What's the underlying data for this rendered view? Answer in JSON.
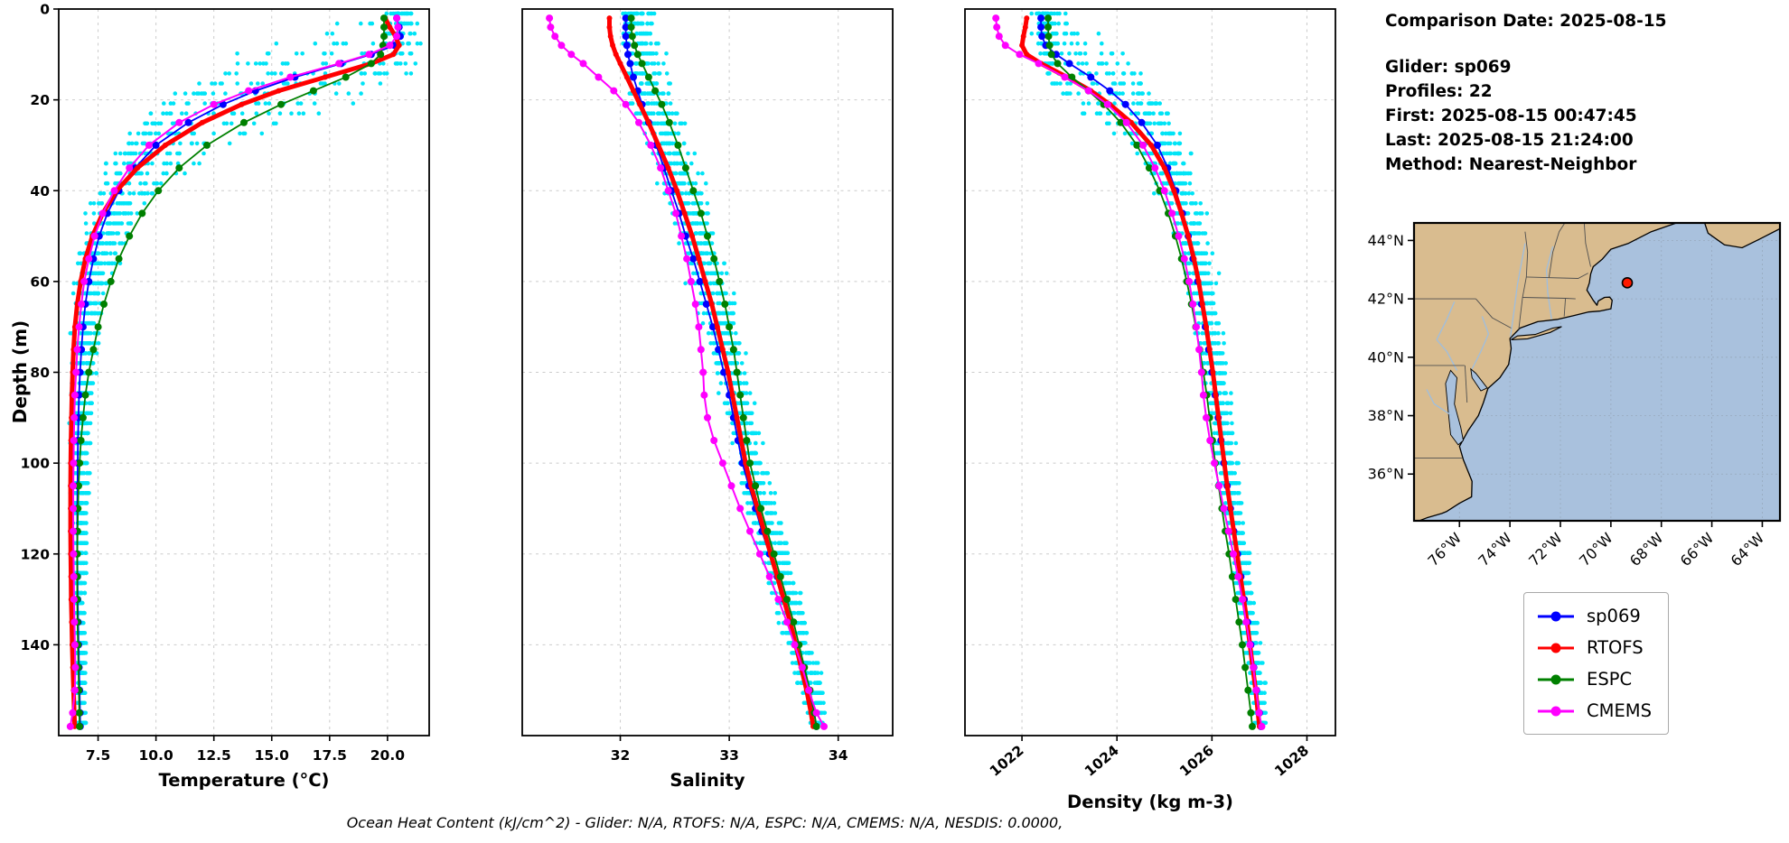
{
  "info": {
    "comparison_date": "Comparison Date: 2025-08-15",
    "glider": "Glider: sp069",
    "profiles": "Profiles: 22",
    "first": "First: 2025-08-15 00:47:45",
    "last": "Last: 2025-08-15 21:24:00",
    "method": "Method: Nearest-Neighbor"
  },
  "caption": {
    "text": "Ocean Heat Content (kJ/cm^2) - Glider: N/A,  RTOFS: N/A,  ESPC: N/A,  CMEMS: N/A,  NESDIS: 0.0000,"
  },
  "chart_data": {
    "type": "line",
    "profiles": {
      "depth_label": "Depth (m)",
      "depth_ticks": [
        0,
        20,
        40,
        60,
        80,
        100,
        120,
        140
      ],
      "depth_lim": [
        0,
        160
      ],
      "depths": [
        2,
        4,
        6,
        8,
        10,
        12,
        15,
        18,
        21,
        25,
        30,
        35,
        40,
        45,
        50,
        55,
        60,
        65,
        70,
        75,
        80,
        85,
        90,
        95,
        100,
        105,
        110,
        115,
        120,
        125,
        130,
        135,
        140,
        145,
        150,
        155,
        158
      ],
      "panels": [
        {
          "key": "temperature",
          "xlabel": "Temperature (°C)",
          "xlim": [
            5.8,
            21.8
          ],
          "xticks": [
            7.5,
            10.0,
            12.5,
            15.0,
            17.5,
            20.0
          ],
          "tick_rotation": 0,
          "tick_format": "fixed1"
        },
        {
          "key": "salinity",
          "xlabel": "Salinity",
          "xlim": [
            31.1,
            34.5
          ],
          "xticks": [
            32,
            33,
            34
          ],
          "tick_rotation": 0,
          "tick_format": "int"
        },
        {
          "key": "density",
          "xlabel": "Density (kg m-3)",
          "xlim": [
            1020.8,
            1028.6
          ],
          "xticks": [
            1022,
            1024,
            1026,
            1028
          ],
          "tick_rotation": -40,
          "tick_format": "int"
        }
      ],
      "series": [
        {
          "name": "sp069",
          "color": "#0000ff",
          "line_width": 1.8,
          "marker_r": 4,
          "temperature": [
            20.4,
            20.5,
            20.55,
            20.3,
            19.3,
            18.0,
            16.0,
            14.3,
            12.9,
            11.4,
            10.0,
            9.1,
            8.4,
            7.9,
            7.55,
            7.3,
            7.1,
            6.95,
            6.85,
            6.78,
            6.72,
            6.68,
            6.65,
            6.63,
            6.62,
            6.61,
            6.6,
            6.6,
            6.6,
            6.61,
            6.62,
            6.64,
            6.66,
            6.68,
            6.7,
            6.72,
            6.73
          ],
          "salinity": [
            32.05,
            32.05,
            32.05,
            32.06,
            32.07,
            32.09,
            32.12,
            32.16,
            32.2,
            32.26,
            32.33,
            32.4,
            32.47,
            32.54,
            32.6,
            32.67,
            32.73,
            32.79,
            32.85,
            32.9,
            32.95,
            33.0,
            33.04,
            33.08,
            33.12,
            33.18,
            33.24,
            33.3,
            33.37,
            33.44,
            33.5,
            33.56,
            33.62,
            33.68,
            33.73,
            33.78,
            33.8
          ],
          "density": [
            1022.4,
            1022.4,
            1022.42,
            1022.5,
            1022.72,
            1023.0,
            1023.45,
            1023.85,
            1024.18,
            1024.52,
            1024.85,
            1025.07,
            1025.24,
            1025.38,
            1025.5,
            1025.6,
            1025.7,
            1025.78,
            1025.86,
            1025.93,
            1026.0,
            1026.07,
            1026.13,
            1026.19,
            1026.25,
            1026.32,
            1026.39,
            1026.46,
            1026.54,
            1026.61,
            1026.68,
            1026.75,
            1026.82,
            1026.88,
            1026.94,
            1027.0,
            1027.03
          ]
        },
        {
          "name": "RTOFS",
          "color": "#ff0000",
          "line_width": 5,
          "marker_r": 3,
          "temperature": [
            19.9,
            20.1,
            20.35,
            20.5,
            20.25,
            19.3,
            17.3,
            15.3,
            13.7,
            12.0,
            10.4,
            9.2,
            8.3,
            7.7,
            7.25,
            6.95,
            6.75,
            6.6,
            6.5,
            6.44,
            6.4,
            6.37,
            6.35,
            6.33,
            6.32,
            6.31,
            6.31,
            6.31,
            6.32,
            6.33,
            6.34,
            6.36,
            6.38,
            6.41,
            6.44,
            6.47,
            6.49
          ],
          "salinity": [
            31.9,
            31.9,
            31.91,
            31.93,
            31.96,
            32.0,
            32.06,
            32.12,
            32.18,
            32.26,
            32.35,
            32.44,
            32.52,
            32.59,
            32.66,
            32.72,
            32.78,
            32.84,
            32.89,
            32.94,
            32.99,
            33.03,
            33.07,
            33.11,
            33.15,
            33.2,
            33.26,
            33.32,
            33.38,
            33.44,
            33.5,
            33.56,
            33.61,
            33.66,
            33.71,
            33.75,
            33.77
          ],
          "density": [
            1022.1,
            1022.07,
            1022.03,
            1022.0,
            1022.1,
            1022.4,
            1022.95,
            1023.45,
            1023.85,
            1024.3,
            1024.72,
            1025.0,
            1025.2,
            1025.36,
            1025.5,
            1025.62,
            1025.72,
            1025.8,
            1025.88,
            1025.95,
            1026.02,
            1026.08,
            1026.14,
            1026.2,
            1026.26,
            1026.32,
            1026.39,
            1026.46,
            1026.53,
            1026.6,
            1026.67,
            1026.74,
            1026.8,
            1026.86,
            1026.92,
            1026.97,
            1027.0
          ]
        },
        {
          "name": "ESPC",
          "color": "#008000",
          "line_width": 1.8,
          "marker_r": 4,
          "temperature": [
            19.85,
            19.85,
            19.85,
            19.8,
            19.7,
            19.3,
            18.2,
            16.8,
            15.4,
            13.8,
            12.2,
            11.0,
            10.1,
            9.4,
            8.85,
            8.4,
            8.05,
            7.75,
            7.5,
            7.3,
            7.1,
            6.95,
            6.85,
            6.76,
            6.7,
            6.66,
            6.63,
            6.61,
            6.6,
            6.6,
            6.6,
            6.61,
            6.63,
            6.65,
            6.67,
            6.69,
            6.7
          ],
          "salinity": [
            32.1,
            32.1,
            32.11,
            32.13,
            32.16,
            32.2,
            32.26,
            32.32,
            32.38,
            32.45,
            32.53,
            32.6,
            32.67,
            32.74,
            32.8,
            32.86,
            32.91,
            32.96,
            33.0,
            33.04,
            33.07,
            33.1,
            33.13,
            33.16,
            33.19,
            33.24,
            33.29,
            33.35,
            33.41,
            33.47,
            33.53,
            33.59,
            33.64,
            33.69,
            33.74,
            33.78,
            33.8
          ],
          "density": [
            1022.55,
            1022.55,
            1022.56,
            1022.58,
            1022.62,
            1022.75,
            1023.05,
            1023.4,
            1023.72,
            1024.08,
            1024.42,
            1024.68,
            1024.9,
            1025.08,
            1025.23,
            1025.36,
            1025.47,
            1025.57,
            1025.66,
            1025.74,
            1025.82,
            1025.89,
            1025.95,
            1026.01,
            1026.07,
            1026.14,
            1026.21,
            1026.28,
            1026.36,
            1026.43,
            1026.5,
            1026.57,
            1026.64,
            1026.7,
            1026.76,
            1026.82,
            1026.85
          ]
        },
        {
          "name": "CMEMS",
          "color": "#ff00ff",
          "line_width": 2,
          "marker_r": 4,
          "temperature": [
            20.4,
            20.45,
            20.4,
            20.1,
            19.2,
            17.9,
            15.8,
            14.0,
            12.5,
            11.0,
            9.7,
            8.85,
            8.2,
            7.7,
            7.35,
            7.1,
            6.9,
            6.78,
            6.68,
            6.6,
            6.55,
            6.5,
            6.47,
            6.45,
            6.44,
            6.43,
            6.43,
            6.43,
            6.44,
            6.45,
            6.46,
            6.48,
            6.5,
            6.52,
            6.5,
            6.4,
            6.3
          ],
          "salinity": [
            31.35,
            31.36,
            31.4,
            31.46,
            31.55,
            31.66,
            31.8,
            31.94,
            32.05,
            32.17,
            32.28,
            32.37,
            32.44,
            32.51,
            32.56,
            32.61,
            32.65,
            32.69,
            32.72,
            32.74,
            32.76,
            32.77,
            32.8,
            32.86,
            32.94,
            33.02,
            33.1,
            33.19,
            33.28,
            33.37,
            33.45,
            33.53,
            33.6,
            33.67,
            33.73,
            33.8,
            33.87
          ],
          "density": [
            1021.45,
            1021.47,
            1021.52,
            1021.65,
            1021.95,
            1022.35,
            1022.9,
            1023.4,
            1023.8,
            1024.2,
            1024.55,
            1024.8,
            1025.0,
            1025.16,
            1025.3,
            1025.42,
            1025.52,
            1025.6,
            1025.67,
            1025.73,
            1025.78,
            1025.82,
            1025.88,
            1025.96,
            1026.05,
            1026.15,
            1026.25,
            1026.35,
            1026.45,
            1026.55,
            1026.64,
            1026.72,
            1026.8,
            1026.87,
            1026.93,
            1026.99,
            1027.05
          ]
        }
      ],
      "scatter": {
        "name": "glider-raw-points",
        "color": "#00e4f6",
        "base": "sp069",
        "profiles": 22,
        "seed": 42,
        "depth_step": 2.2,
        "depth_jitter": 9,
        "noise": {
          "temperature": 0.35,
          "salinity": 0.08,
          "density": 0.12
        },
        "offset": {
          "temperature": 0.15,
          "salinity": 0.12,
          "density": 0.1
        },
        "profile_spread": {
          "temperature": 0.5,
          "salinity": 0.1,
          "density": 0.2
        },
        "spread_taper": {
          "start": 30,
          "scale": 160,
          "min": 0.3
        }
      }
    }
  },
  "map": {
    "extent": {
      "lon_min": -77.8,
      "lon_max": -63.3,
      "lat_min": 34.4,
      "lat_max": 44.6
    },
    "lat_tick_vals": [
      36,
      38,
      40,
      42,
      44
    ],
    "lat_tick_labels": [
      "36°N",
      "38°N",
      "40°N",
      "42°N",
      "44°N"
    ],
    "lon_tick_vals": [
      -76,
      -74,
      -72,
      -70,
      -68,
      -66,
      -64
    ],
    "lon_tick_labels": [
      "76°W",
      "74°W",
      "72°W",
      "70°W",
      "68°W",
      "66°W",
      "64°W"
    ],
    "marker": {
      "lon": -69.35,
      "lat": 42.55,
      "color": "#ff1a00"
    },
    "colors": {
      "land": "#d9bc8f",
      "ocean": "#a9c1dd",
      "river": "#9fbede",
      "border": "#4f4f4f",
      "coast": "#000000"
    },
    "mainland": [
      [
        -77.9,
        34.3
      ],
      [
        -77.3,
        34.5
      ],
      [
        -76.7,
        34.65
      ],
      [
        -76.5,
        34.72
      ],
      [
        -76.0,
        35.0
      ],
      [
        -75.52,
        35.22
      ],
      [
        -75.5,
        35.75
      ],
      [
        -75.85,
        36.5
      ],
      [
        -76.0,
        36.95
      ],
      [
        -75.65,
        37.5
      ],
      [
        -75.25,
        38.0
      ],
      [
        -75.05,
        38.45
      ],
      [
        -74.87,
        38.93
      ],
      [
        -74.4,
        39.3
      ],
      [
        -74.05,
        39.75
      ],
      [
        -73.95,
        40.3
      ],
      [
        -74.0,
        40.64
      ],
      [
        -73.6,
        41.0
      ],
      [
        -72.9,
        41.22
      ],
      [
        -72.1,
        41.3
      ],
      [
        -71.5,
        41.42
      ],
      [
        -70.9,
        41.55
      ],
      [
        -70.45,
        41.58
      ],
      [
        -70.0,
        41.66
      ],
      [
        -69.95,
        41.95
      ],
      [
        -70.05,
        42.06
      ],
      [
        -70.25,
        42.05
      ],
      [
        -70.5,
        41.93
      ],
      [
        -70.55,
        41.78
      ],
      [
        -70.7,
        41.95
      ],
      [
        -70.95,
        42.3
      ],
      [
        -70.85,
        42.55
      ],
      [
        -70.8,
        42.85
      ],
      [
        -70.7,
        43.1
      ],
      [
        -70.35,
        43.35
      ],
      [
        -70.0,
        43.7
      ],
      [
        -69.3,
        43.9
      ],
      [
        -68.4,
        44.3
      ],
      [
        -67.4,
        44.6
      ],
      [
        -67.0,
        44.9
      ],
      [
        -78.0,
        44.9
      ]
    ],
    "long_island": [
      [
        -73.95,
        40.6
      ],
      [
        -73.3,
        40.63
      ],
      [
        -72.4,
        40.85
      ],
      [
        -71.95,
        41.05
      ],
      [
        -72.3,
        41.0
      ],
      [
        -73.0,
        40.78
      ],
      [
        -73.7,
        40.73
      ]
    ],
    "nova_scotia": [
      [
        -66.4,
        44.9
      ],
      [
        -66.15,
        44.25
      ],
      [
        -65.5,
        43.85
      ],
      [
        -64.8,
        43.75
      ],
      [
        -64.1,
        44.05
      ],
      [
        -63.2,
        44.45
      ],
      [
        -63.2,
        44.9
      ]
    ],
    "bays": [
      [
        [
          -76.05,
          37.0
        ],
        [
          -76.35,
          37.35
        ],
        [
          -76.45,
          38.2
        ],
        [
          -76.55,
          39.1
        ],
        [
          -76.35,
          39.55
        ],
        [
          -76.1,
          39.3
        ],
        [
          -76.2,
          38.4
        ],
        [
          -75.95,
          37.6
        ],
        [
          -75.85,
          37.15
        ]
      ],
      [
        [
          -74.9,
          38.95
        ],
        [
          -75.35,
          39.45
        ],
        [
          -75.55,
          39.6
        ],
        [
          -75.5,
          39.3
        ],
        [
          -75.15,
          38.85
        ]
      ]
    ],
    "rivers": [
      [
        [
          -73.98,
          40.7
        ],
        [
          -73.85,
          41.5
        ],
        [
          -73.7,
          42.5
        ],
        [
          -73.55,
          43.2
        ],
        [
          -73.4,
          43.9
        ]
      ],
      [
        [
          -72.35,
          41.3
        ],
        [
          -72.5,
          42.2
        ],
        [
          -72.55,
          43.0
        ],
        [
          -72.3,
          43.8
        ]
      ],
      [
        [
          -75.5,
          39.6
        ],
        [
          -75.15,
          40.2
        ],
        [
          -74.85,
          40.8
        ],
        [
          -75.1,
          41.4
        ]
      ],
      [
        [
          -76.1,
          39.55
        ],
        [
          -76.5,
          40.2
        ],
        [
          -76.9,
          40.6
        ],
        [
          -76.5,
          41.3
        ],
        [
          -76.2,
          41.9
        ]
      ],
      [
        [
          -76.3,
          38.0
        ],
        [
          -77.0,
          38.4
        ],
        [
          -77.3,
          38.9
        ]
      ]
    ],
    "borders": [
      [
        [
          -77.9,
          36.55
        ],
        [
          -75.9,
          36.55
        ]
      ],
      [
        [
          -77.9,
          39.72
        ],
        [
          -75.8,
          39.72
        ]
      ],
      [
        [
          -75.78,
          39.72
        ],
        [
          -75.7,
          38.45
        ]
      ],
      [
        [
          -77.9,
          42.0
        ],
        [
          -75.35,
          42.0
        ]
      ],
      [
        [
          -75.35,
          42.0
        ],
        [
          -74.7,
          41.35
        ],
        [
          -73.95,
          41.0
        ]
      ],
      [
        [
          -73.65,
          40.95
        ],
        [
          -73.5,
          42.05
        ],
        [
          -73.35,
          42.75
        ],
        [
          -73.3,
          43.6
        ],
        [
          -73.4,
          44.3
        ]
      ],
      [
        [
          -73.5,
          42.05
        ],
        [
          -71.8,
          42.02
        ],
        [
          -71.4,
          42.0
        ]
      ],
      [
        [
          -71.8,
          42.02
        ],
        [
          -71.85,
          41.4
        ]
      ],
      [
        [
          -73.35,
          42.75
        ],
        [
          -71.3,
          42.7
        ],
        [
          -70.9,
          42.88
        ]
      ],
      [
        [
          -72.45,
          42.73
        ],
        [
          -72.3,
          43.6
        ],
        [
          -72.05,
          44.3
        ],
        [
          -71.6,
          44.9
        ]
      ],
      [
        [
          -70.8,
          43.1
        ],
        [
          -71.0,
          43.9
        ],
        [
          -71.08,
          44.9
        ]
      ]
    ]
  },
  "legend_title": ""
}
